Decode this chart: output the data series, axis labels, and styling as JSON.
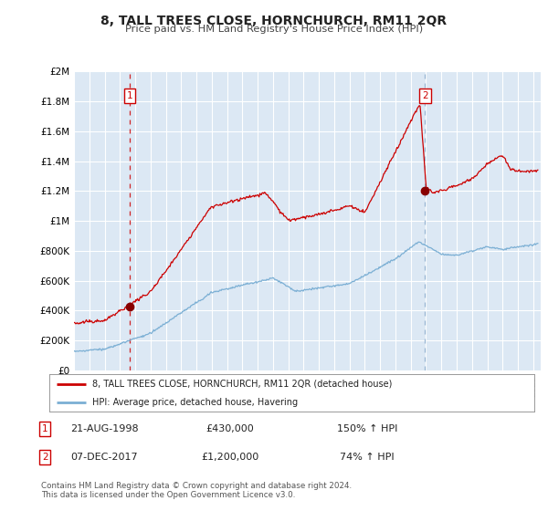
{
  "title": "8, TALL TREES CLOSE, HORNCHURCH, RM11 2QR",
  "subtitle": "Price paid vs. HM Land Registry's House Price Index (HPI)",
  "ylim": [
    0,
    2000000
  ],
  "xlim_start": 1995.0,
  "xlim_end": 2025.5,
  "background_color": "#ffffff",
  "plot_bg_color": "#dce8f4",
  "grid_color": "#ffffff",
  "sale1_date": 1998.644,
  "sale1_price": 430000,
  "sale2_date": 2017.931,
  "sale2_price": 1200000,
  "legend_line1": "8, TALL TREES CLOSE, HORNCHURCH, RM11 2QR (detached house)",
  "legend_line2": "HPI: Average price, detached house, Havering",
  "annotation1_num": "1",
  "annotation1_date": "21-AUG-1998",
  "annotation1_price": "£430,000",
  "annotation1_hpi": "150% ↑ HPI",
  "annotation2_num": "2",
  "annotation2_date": "07-DEC-2017",
  "annotation2_price": "£1,200,000",
  "annotation2_hpi": "74% ↑ HPI",
  "footer1": "Contains HM Land Registry data © Crown copyright and database right 2024.",
  "footer2": "This data is licensed under the Open Government Licence v3.0.",
  "red_line_color": "#cc0000",
  "blue_line_color": "#7bafd4",
  "sale_marker_color": "#880000",
  "vline1_color": "#cc0000",
  "vline2_color": "#88aacc",
  "label_box_color": "#cc0000",
  "ytick_labels": [
    "£0",
    "£200K",
    "£400K",
    "£600K",
    "£800K",
    "£1M",
    "£1.2M",
    "£1.4M",
    "£1.6M",
    "£1.8M",
    "£2M"
  ],
  "ytick_values": [
    0,
    200000,
    400000,
    600000,
    800000,
    1000000,
    1200000,
    1400000,
    1600000,
    1800000,
    2000000
  ]
}
